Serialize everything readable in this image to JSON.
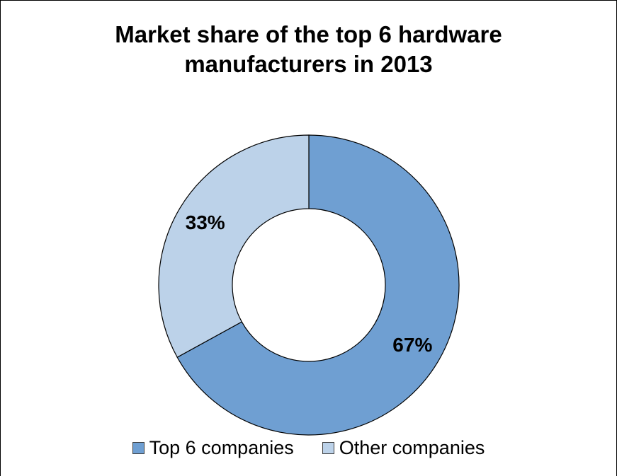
{
  "chart_data": {
    "type": "pie",
    "donut": true,
    "title_lines": [
      "Market share of the top 6 hardware",
      "manufacturers in 2013"
    ],
    "legend_position": "bottom",
    "slices": [
      {
        "name": "Top 6 companies",
        "value": 67,
        "label": "67%",
        "color": "#6f9fd2"
      },
      {
        "name": "Other companies",
        "value": 33,
        "label": "33%",
        "color": "#bcd2e9"
      }
    ]
  }
}
